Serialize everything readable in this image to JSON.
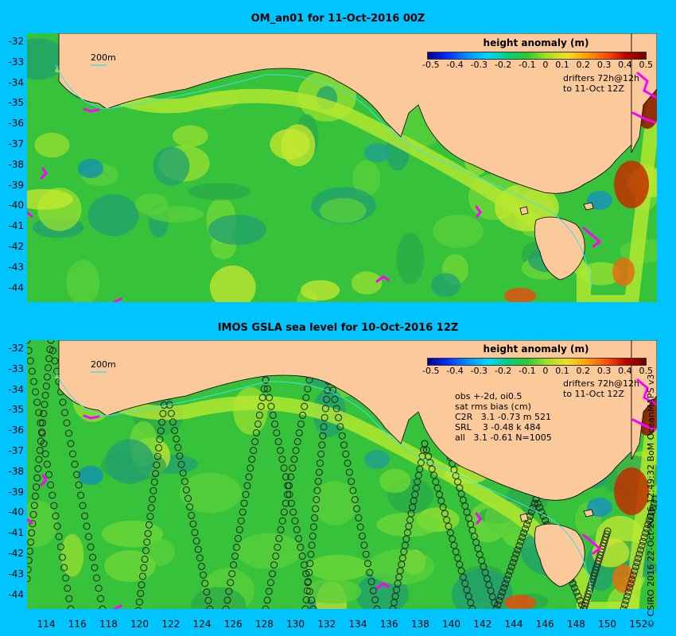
{
  "map_top": {
    "title": "OM_an01 for 11-Oct-2016 00Z"
  },
  "map_bottom": {
    "title": "IMOS GSLA sea level  for 10-Oct-2016 12Z",
    "stats": "obs +-2d, oi0.5\nsat rms bias (cm)\nC2R   3.1 -0.73 m 521\nSRL    3 -0.48 k 484\nall   3.1 -0.61 N=1005"
  },
  "colorbar": {
    "title": "height anomaly (m)",
    "ticks": [
      "-0.5",
      "-0.4",
      "-0.3",
      "-0.2",
      "-0.1",
      "0",
      "0.1",
      "0.2",
      "0.3",
      "0.4",
      "0.5"
    ]
  },
  "scale_label": "200m",
  "drifters_label": "drifters 72h@12h\nto 11-Oct 12Z",
  "lat_ticks": [
    "-32",
    "-33",
    "-34",
    "-35",
    "-36",
    "-37",
    "-38",
    "-39",
    "-40",
    "-41",
    "-42",
    "-43",
    "-44"
  ],
  "lon_ticks": [
    "114",
    "116",
    "118",
    "120",
    "122",
    "124",
    "126",
    "128",
    "130",
    "132",
    "134",
    "136",
    "138",
    "140",
    "142",
    "144",
    "146",
    "148",
    "150",
    "152"
  ],
  "credit": "© CSIRO 2016  22-Oct-2016 12:49:32 BoM OceanMAPS v3",
  "colors": {
    "background": "#00c4ff",
    "land": "#fcc99a",
    "ocean": "#36c23a",
    "drifter": "#ff00ff",
    "shelf": "#a0e030"
  }
}
